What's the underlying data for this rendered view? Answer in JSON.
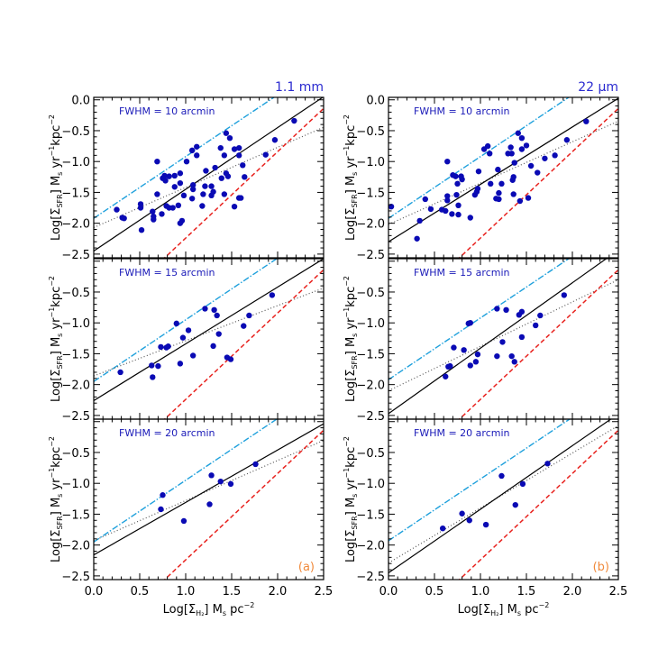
{
  "colors": {
    "points": "#0a0ab4",
    "fit_solid": "#000000",
    "dash_dot": "#1ea0dc",
    "dashed": "#e8221e",
    "dotted": "#555555",
    "panel_text": "#1a1ab8",
    "corner_text": "#f08a3c"
  },
  "chart_data": {
    "type": "scatter",
    "layout": "3 rows x 2 columns",
    "grid": false,
    "xlim": [
      0.0,
      2.5
    ],
    "ylim": [
      -2.56,
      0.04
    ],
    "xticks": [
      "0.0",
      "0.5",
      "1.0",
      "1.5",
      "2.0",
      "2.5"
    ],
    "xtick_values": [
      0.0,
      0.5,
      1.0,
      1.5,
      2.0,
      2.5
    ],
    "yticks": [
      "0.0",
      "-0.5",
      "-1.0",
      "-1.5",
      "-2.0",
      "-2.5"
    ],
    "ytick_values": [
      0.0,
      -0.5,
      -1.0,
      -1.5,
      -2.0,
      -2.5
    ],
    "xlabel_parts": [
      [
        "Log[Σ",
        "n"
      ],
      [
        "H₂",
        "sub"
      ],
      [
        "]  M",
        "n"
      ],
      [
        "s",
        "sub"
      ],
      [
        "  pc",
        "n"
      ],
      [
        "−2",
        "sup"
      ]
    ],
    "ylabel_parts": [
      [
        "Log[Σ",
        "n"
      ],
      [
        "SFR",
        "sub"
      ],
      [
        "]  M",
        "n"
      ],
      [
        "s",
        "sub"
      ],
      [
        "  yr",
        "n"
      ],
      [
        "−1",
        "sup"
      ],
      [
        "kpc",
        "n"
      ],
      [
        "−2",
        "sup"
      ]
    ],
    "column_titles": [
      "1.1 mm",
      "22 μm"
    ],
    "column_tags": [
      "(a)",
      "(b)"
    ],
    "panels": [
      {
        "column": 0,
        "row": 0,
        "label": "FWHM = 10 arcmin",
        "lines": {
          "solid": [
            1.0,
            -2.45
          ],
          "dash_dot": [
            1.0,
            -1.92
          ],
          "dashed": [
            1.4,
            -3.64
          ],
          "dotted": [
            0.65,
            -2.07
          ]
        },
        "points": [
          [
            0.25,
            -1.78
          ],
          [
            0.31,
            -1.91
          ],
          [
            0.33,
            -1.92
          ],
          [
            0.51,
            -1.69
          ],
          [
            0.51,
            -1.75
          ],
          [
            0.52,
            -2.11
          ],
          [
            0.64,
            -1.81
          ],
          [
            0.65,
            -1.89
          ],
          [
            0.65,
            -1.94
          ],
          [
            0.69,
            -1.0
          ],
          [
            0.69,
            -1.53
          ],
          [
            0.74,
            -1.85
          ],
          [
            0.75,
            -1.27
          ],
          [
            0.77,
            -1.23
          ],
          [
            0.78,
            -1.31
          ],
          [
            0.82,
            -1.24
          ],
          [
            0.79,
            -1.72
          ],
          [
            0.82,
            -1.75
          ],
          [
            0.86,
            -1.75
          ],
          [
            0.88,
            -1.23
          ],
          [
            0.88,
            -1.41
          ],
          [
            0.92,
            -1.71
          ],
          [
            0.94,
            -1.35
          ],
          [
            0.94,
            -1.19
          ],
          [
            0.94,
            -2.0
          ],
          [
            0.96,
            -1.96
          ],
          [
            0.98,
            -1.55
          ],
          [
            1.01,
            -1.0
          ],
          [
            1.07,
            -1.6
          ],
          [
            1.07,
            -0.82
          ],
          [
            1.12,
            -0.76
          ],
          [
            1.12,
            -0.9
          ],
          [
            1.08,
            -1.38
          ],
          [
            1.08,
            -1.45
          ],
          [
            1.18,
            -1.72
          ],
          [
            1.19,
            -1.53
          ],
          [
            1.21,
            -1.4
          ],
          [
            1.22,
            -1.15
          ],
          [
            1.28,
            -1.4
          ],
          [
            1.28,
            -1.55
          ],
          [
            1.3,
            -1.49
          ],
          [
            1.32,
            -1.1
          ],
          [
            1.38,
            -0.78
          ],
          [
            1.42,
            -0.9
          ],
          [
            1.39,
            -1.27
          ],
          [
            1.44,
            -1.19
          ],
          [
            1.46,
            -1.24
          ],
          [
            1.42,
            -1.53
          ],
          [
            1.44,
            -0.54
          ],
          [
            1.48,
            -0.62
          ],
          [
            1.53,
            -0.8
          ],
          [
            1.58,
            -0.78
          ],
          [
            1.58,
            -0.9
          ],
          [
            1.53,
            -1.73
          ],
          [
            1.58,
            -1.59
          ],
          [
            1.6,
            -1.59
          ],
          [
            1.62,
            -1.06
          ],
          [
            1.64,
            -1.25
          ],
          [
            1.87,
            -0.89
          ],
          [
            1.97,
            -0.65
          ],
          [
            2.18,
            -0.34
          ]
        ]
      },
      {
        "column": 1,
        "row": 0,
        "label": "FWHM = 10 arcmin",
        "lines": {
          "solid": [
            0.93,
            -2.3
          ],
          "dash_dot": [
            1.0,
            -1.92
          ],
          "dashed": [
            1.4,
            -3.64
          ],
          "dotted": [
            0.67,
            -2.02
          ]
        },
        "points": [
          [
            0.03,
            -1.73
          ],
          [
            0.34,
            -1.96
          ],
          [
            0.31,
            -2.25
          ],
          [
            0.4,
            -1.61
          ],
          [
            0.46,
            -1.77
          ],
          [
            0.58,
            -1.78
          ],
          [
            0.62,
            -1.8
          ],
          [
            0.64,
            -1.0
          ],
          [
            0.64,
            -1.56
          ],
          [
            0.64,
            -1.63
          ],
          [
            0.7,
            -1.22
          ],
          [
            0.73,
            -1.24
          ],
          [
            0.69,
            -1.85
          ],
          [
            0.76,
            -1.71
          ],
          [
            0.76,
            -1.86
          ],
          [
            0.75,
            -1.36
          ],
          [
            0.74,
            -1.54
          ],
          [
            0.79,
            -1.24
          ],
          [
            0.8,
            -1.29
          ],
          [
            0.89,
            -1.91
          ],
          [
            0.94,
            -1.54
          ],
          [
            0.96,
            -1.49
          ],
          [
            0.97,
            -1.44
          ],
          [
            0.98,
            -1.16
          ],
          [
            1.04,
            -0.8
          ],
          [
            1.08,
            -0.75
          ],
          [
            1.1,
            -0.87
          ],
          [
            1.11,
            -1.36
          ],
          [
            1.19,
            -1.13
          ],
          [
            1.2,
            -1.51
          ],
          [
            1.17,
            -1.6
          ],
          [
            1.2,
            -1.61
          ],
          [
            1.23,
            -1.36
          ],
          [
            1.3,
            -0.87
          ],
          [
            1.33,
            -0.77
          ],
          [
            1.34,
            -0.87
          ],
          [
            1.37,
            -1.02
          ],
          [
            1.35,
            -1.3
          ],
          [
            1.36,
            -1.25
          ],
          [
            1.36,
            -1.53
          ],
          [
            1.41,
            -0.54
          ],
          [
            1.45,
            -0.62
          ],
          [
            1.45,
            -0.8
          ],
          [
            1.5,
            -0.74
          ],
          [
            1.43,
            -1.64
          ],
          [
            1.52,
            -1.59
          ],
          [
            1.55,
            -1.07
          ],
          [
            1.62,
            -1.18
          ],
          [
            1.7,
            -0.95
          ],
          [
            1.81,
            -0.9
          ],
          [
            1.94,
            -0.65
          ],
          [
            2.15,
            -0.35
          ]
        ]
      },
      {
        "column": 0,
        "row": 1,
        "label": "FWHM = 15 arcmin",
        "lines": {
          "solid": [
            0.92,
            -2.26
          ],
          "dash_dot": [
            1.0,
            -1.95
          ],
          "dashed": [
            1.4,
            -3.64
          ],
          "dotted": [
            0.57,
            -1.86
          ]
        },
        "points": [
          [
            0.29,
            -1.8
          ],
          [
            0.63,
            -1.69
          ],
          [
            0.7,
            -1.7
          ],
          [
            0.64,
            -1.88
          ],
          [
            0.73,
            -1.39
          ],
          [
            0.79,
            -1.4
          ],
          [
            0.81,
            -1.38
          ],
          [
            0.9,
            -1.01
          ],
          [
            0.94,
            -1.66
          ],
          [
            0.97,
            -1.24
          ],
          [
            1.03,
            -1.12
          ],
          [
            1.08,
            -1.53
          ],
          [
            1.21,
            -0.77
          ],
          [
            1.3,
            -1.375
          ],
          [
            1.31,
            -0.79
          ],
          [
            1.34,
            -0.88
          ],
          [
            1.36,
            -1.18
          ],
          [
            1.45,
            -1.56
          ],
          [
            1.49,
            -1.59
          ],
          [
            1.63,
            -1.05
          ],
          [
            1.69,
            -0.88
          ],
          [
            1.94,
            -0.55
          ]
        ]
      },
      {
        "column": 1,
        "row": 1,
        "label": "FWHM = 15 arcmin",
        "lines": {
          "solid": [
            1.06,
            -2.47
          ],
          "dash_dot": [
            1.0,
            -1.92
          ],
          "dashed": [
            1.4,
            -3.64
          ],
          "dotted": [
            0.72,
            -2.1
          ]
        },
        "points": [
          [
            0.62,
            -1.87
          ],
          [
            0.65,
            -1.71
          ],
          [
            0.67,
            -1.7
          ],
          [
            0.71,
            -1.4
          ],
          [
            0.82,
            -1.44
          ],
          [
            0.87,
            -1.01
          ],
          [
            0.89,
            -1.0
          ],
          [
            0.89,
            -1.69
          ],
          [
            0.95,
            -1.63
          ],
          [
            0.97,
            -1.51
          ],
          [
            1.18,
            -0.77
          ],
          [
            1.18,
            -1.54
          ],
          [
            1.24,
            -1.31
          ],
          [
            1.28,
            -0.79
          ],
          [
            1.34,
            -1.54
          ],
          [
            1.37,
            -1.63
          ],
          [
            1.42,
            -0.87
          ],
          [
            1.45,
            -0.82
          ],
          [
            1.45,
            -1.23
          ],
          [
            1.6,
            -1.04
          ],
          [
            1.65,
            -0.88
          ],
          [
            1.91,
            -0.55
          ]
        ]
      },
      {
        "column": 0,
        "row": 2,
        "label": "FWHM = 20 arcmin",
        "lines": {
          "solid": [
            0.85,
            -2.16
          ],
          "dash_dot": [
            1.0,
            -1.95
          ],
          "dashed": [
            1.4,
            -3.64
          ],
          "dotted": [
            0.65,
            -1.93
          ]
        },
        "points": [
          [
            0.75,
            -1.19
          ],
          [
            0.73,
            -1.42
          ],
          [
            0.98,
            -1.61
          ],
          [
            1.26,
            -1.34
          ],
          [
            1.28,
            -0.87
          ],
          [
            1.38,
            -0.97
          ],
          [
            1.49,
            -1.01
          ],
          [
            1.76,
            -0.69
          ]
        ]
      },
      {
        "column": 1,
        "row": 2,
        "label": "FWHM = 20 arcmin",
        "lines": {
          "solid": [
            1.03,
            -2.45
          ],
          "dash_dot": [
            1.0,
            -1.93
          ],
          "dashed": [
            1.4,
            -3.64
          ],
          "dotted": [
            0.89,
            -2.29
          ]
        },
        "points": [
          [
            0.59,
            -1.73
          ],
          [
            0.8,
            -1.49
          ],
          [
            0.88,
            -1.6
          ],
          [
            1.06,
            -1.67
          ],
          [
            1.23,
            -0.88
          ],
          [
            1.38,
            -1.35
          ],
          [
            1.46,
            -1.01
          ],
          [
            1.73,
            -0.68
          ]
        ]
      }
    ]
  }
}
